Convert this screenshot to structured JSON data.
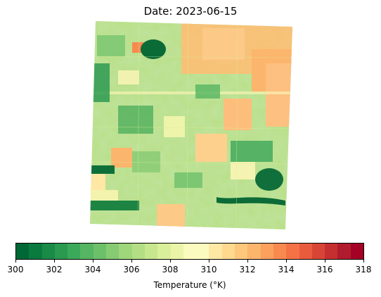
{
  "figure": {
    "title": "Date: 2023-06-15"
  },
  "colorbar": {
    "label": "Temperature (°K)",
    "min": 300,
    "max": 318,
    "ticks": [
      "300",
      "302",
      "304",
      "306",
      "308",
      "310",
      "312",
      "314",
      "316",
      "318"
    ],
    "colors": [
      "#006837",
      "#0a7a3f",
      "#1a8a47",
      "#2a9a50",
      "#3ca85a",
      "#55b562",
      "#6dc06a",
      "#86cb72",
      "#9fd57b",
      "#b4de84",
      "#c7e68e",
      "#d9ef9a",
      "#eaf5a8",
      "#fbfbbf",
      "#fbfbbf",
      "#fee8a4",
      "#fed98e",
      "#fdc87c",
      "#fcb56c",
      "#fca05d",
      "#f88a50",
      "#f47245",
      "#e85b3d",
      "#d84536",
      "#c62f30",
      "#b01c2d",
      "#a50026"
    ]
  }
}
